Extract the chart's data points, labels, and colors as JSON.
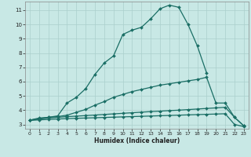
{
  "xlabel": "Humidex (Indice chaleur)",
  "background_color": "#c8e8e5",
  "grid_color": "#aacfcc",
  "line_color": "#1a6e65",
  "xlim": [
    -0.5,
    23.5
  ],
  "ylim": [
    2.7,
    11.6
  ],
  "yticks": [
    3,
    4,
    5,
    6,
    7,
    8,
    9,
    10,
    11
  ],
  "xticks": [
    0,
    1,
    2,
    3,
    4,
    5,
    6,
    7,
    8,
    9,
    10,
    11,
    12,
    13,
    14,
    15,
    16,
    17,
    18,
    19,
    20,
    21,
    22,
    23
  ],
  "series": [
    {
      "x": [
        0,
        1,
        2,
        3,
        4,
        5,
        6,
        7,
        8,
        9,
        10,
        11,
        12,
        13,
        14,
        15,
        16,
        17,
        18,
        19
      ],
      "y": [
        3.3,
        3.4,
        3.5,
        3.6,
        4.5,
        4.9,
        5.5,
        6.5,
        7.3,
        7.8,
        9.3,
        9.6,
        9.8,
        10.4,
        11.1,
        11.35,
        11.2,
        10.0,
        8.5,
        6.6
      ]
    },
    {
      "x": [
        0,
        1,
        2,
        3,
        4,
        5,
        6,
        7,
        8,
        9,
        10,
        11,
        12,
        13,
        14,
        15,
        16,
        17,
        18,
        19,
        20,
        21,
        22,
        23
      ],
      "y": [
        3.3,
        3.45,
        3.5,
        3.55,
        3.65,
        3.85,
        4.05,
        4.35,
        4.6,
        4.9,
        5.1,
        5.3,
        5.45,
        5.6,
        5.75,
        5.85,
        5.95,
        6.05,
        6.15,
        6.3,
        4.5,
        4.5,
        3.5,
        2.9
      ]
    },
    {
      "x": [
        0,
        1,
        2,
        3,
        4,
        5,
        6,
        7,
        8,
        9,
        10,
        11,
        12,
        13,
        14,
        15,
        16,
        17,
        18,
        19,
        20,
        21,
        22,
        23
      ],
      "y": [
        3.3,
        3.38,
        3.45,
        3.5,
        3.55,
        3.58,
        3.62,
        3.66,
        3.7,
        3.74,
        3.78,
        3.82,
        3.86,
        3.9,
        3.93,
        3.97,
        4.0,
        4.04,
        4.08,
        4.12,
        4.16,
        4.2,
        3.5,
        2.9
      ]
    },
    {
      "x": [
        0,
        1,
        2,
        3,
        4,
        5,
        6,
        7,
        8,
        9,
        10,
        11,
        12,
        13,
        14,
        15,
        16,
        17,
        18,
        19,
        20,
        21,
        22,
        23
      ],
      "y": [
        3.28,
        3.32,
        3.35,
        3.38,
        3.41,
        3.43,
        3.45,
        3.47,
        3.49,
        3.51,
        3.53,
        3.55,
        3.57,
        3.59,
        3.61,
        3.63,
        3.65,
        3.67,
        3.69,
        3.71,
        3.73,
        3.75,
        3.0,
        2.85
      ]
    }
  ]
}
